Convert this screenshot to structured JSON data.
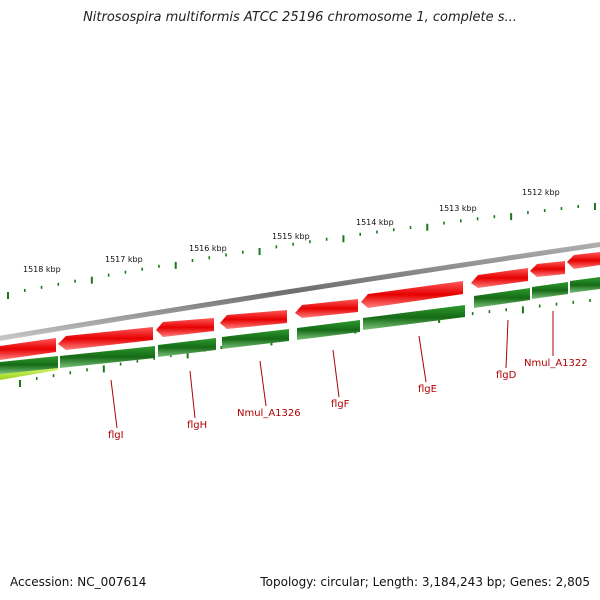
{
  "title": "Nitrosospira multiformis ATCC 25196 chromosome 1, complete s...",
  "footer": {
    "accession": "Accession: NC_007614",
    "summary": "Topology: circular; Length: 3,184,243 bp; Genes: 2,805"
  },
  "colors": {
    "backbone": "#8c8c8c",
    "reverse_strand_gene": "#e60000",
    "forward_strand_gene": "#1e7a1e",
    "highlight_gene": "#c8f050",
    "tick": "#1a7a1a",
    "label": "#b00000"
  },
  "scale_labels": [
    "1518 kbp",
    "1517 kbp",
    "1516 kbp",
    "1515 kbp",
    "1514 kbp",
    "1513 kbp",
    "1512 kbp"
  ],
  "gene_labels": [
    "flgI",
    "flgH",
    "Nmul_A1326",
    "flgF",
    "flgE",
    "flgD",
    "Nmul_A1322"
  ]
}
